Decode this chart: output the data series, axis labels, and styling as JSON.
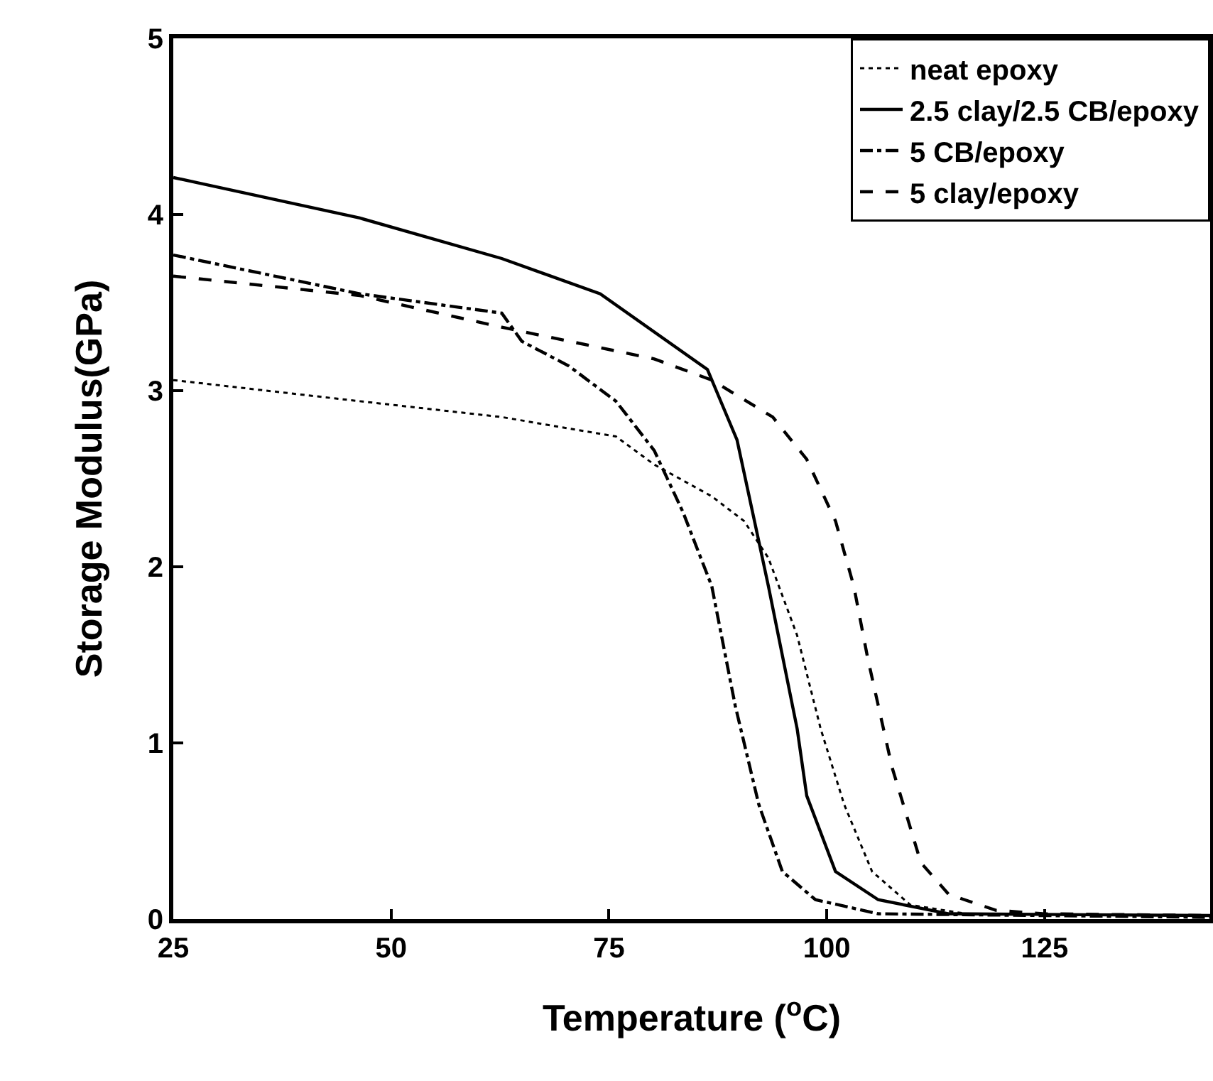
{
  "chart_data": {
    "type": "line",
    "xlabel": "Temperature ($^{o}$C)",
    "ylabel": "Storage Modulus(GPa)",
    "xlim": [
      25,
      144
    ],
    "ylim": [
      0,
      5
    ],
    "xticks": [
      25,
      50,
      75,
      100,
      125
    ],
    "yticks": [
      0,
      1,
      2,
      3,
      4,
      5
    ],
    "grid": false,
    "legend": "top right",
    "marker": "none",
    "series": [
      {
        "name": "neat epoxy",
        "color": "#000000",
        "line_style": "dotted",
        "x": [
          25,
          46.4,
          62.7,
          75.8,
          80.2,
          86.8,
          90.5,
          93.3,
          96.6,
          99.3,
          102,
          105.2,
          109.6,
          116,
          144
        ],
        "values": [
          3.06,
          2.94,
          2.85,
          2.74,
          2.58,
          2.4,
          2.26,
          2.05,
          1.61,
          1.08,
          0.65,
          0.27,
          0.08,
          0.03,
          0.02
        ]
      },
      {
        "name": "2.5 clay/2.5 CB/epoxy",
        "color": "#000000",
        "line_style": "solid",
        "x": [
          25,
          46.4,
          62.7,
          74,
          86.3,
          89.7,
          91.7,
          93.3,
          96.6,
          97.7,
          101,
          105.9,
          114,
          144
        ],
        "values": [
          4.21,
          3.98,
          3.75,
          3.55,
          3.12,
          2.72,
          2.26,
          1.89,
          1.08,
          0.7,
          0.27,
          0.11,
          0.03,
          0.02
        ]
      },
      {
        "name": "5 CB/epoxy",
        "color": "#000000",
        "line_style": "dashdot",
        "x": [
          25,
          46.4,
          62.7,
          65,
          70.4,
          75.8,
          80.2,
          83.5,
          86.8,
          89.5,
          92.2,
          94.9,
          98.7,
          105.9,
          144
        ],
        "values": [
          3.77,
          3.55,
          3.44,
          3.28,
          3.14,
          2.94,
          2.66,
          2.31,
          1.89,
          1.21,
          0.65,
          0.27,
          0.11,
          0.03,
          0.01
        ]
      },
      {
        "name": "5 clay/epoxy",
        "color": "#000000",
        "line_style": "dashed",
        "x": [
          25,
          46.4,
          62.7,
          80.2,
          86.8,
          93.8,
          97.7,
          101,
          103.1,
          104.7,
          107.5,
          110.8,
          114,
          119.4,
          124.8,
          144
        ],
        "values": [
          3.65,
          3.54,
          3.36,
          3.18,
          3.06,
          2.85,
          2.61,
          2.26,
          1.89,
          1.48,
          0.86,
          0.32,
          0.14,
          0.05,
          0.03,
          0.02
        ]
      }
    ]
  }
}
